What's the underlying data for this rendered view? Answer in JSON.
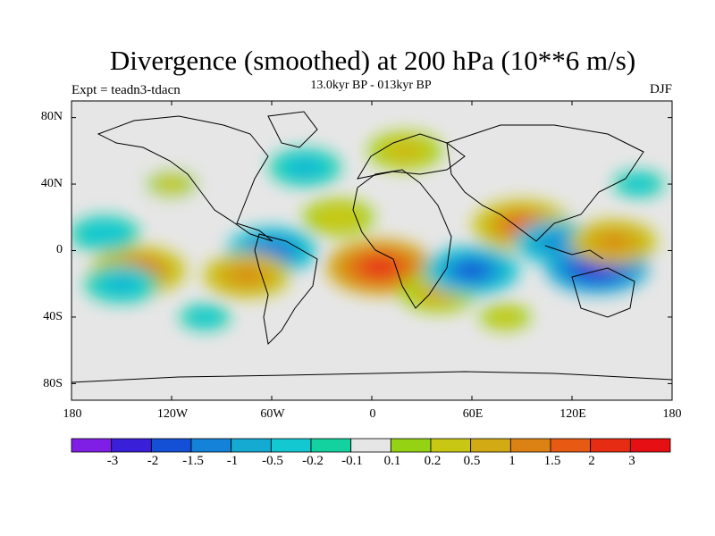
{
  "title": "Divergence (smoothed) at 200 hPa (10**6 m/s)",
  "subtitle": "13.0kyr BP - 013kyr BP",
  "experiment": "Expt = teadn3-tdacn",
  "season": "DJF",
  "map_data": {
    "projection": "cylindrical equidistant",
    "lon_range": [
      -180,
      180
    ],
    "lat_range": [
      -90,
      90
    ],
    "y_tick_labels": [
      "80N",
      "40N",
      "0",
      "40S",
      "80S"
    ],
    "y_tick_values": [
      80,
      40,
      0,
      -40,
      -80
    ],
    "x_tick_labels": [
      "180",
      "120W",
      "60W",
      "0",
      "60E",
      "120E",
      "180"
    ],
    "x_tick_values": [
      -180,
      -120,
      -60,
      0,
      60,
      120,
      180
    ],
    "background_value_color": "#e6e6e6"
  },
  "colorbar": {
    "labels": [
      "-3",
      "-2",
      "-1.5",
      "-1",
      "-0.5",
      "-0.2",
      "-0.1",
      "0.1",
      "0.2",
      "0.5",
      "1",
      "1.5",
      "2",
      "3"
    ],
    "colors": [
      "#7f1fe6",
      "#3a1fd9",
      "#1450d6",
      "#1482d9",
      "#14aad2",
      "#14c8d2",
      "#14d2a0",
      "#e6e6e6",
      "#96d214",
      "#c8c814",
      "#d2aa14",
      "#dc8214",
      "#e65a14",
      "#e62d14",
      "#e60f14"
    ]
  },
  "field_blobs": [
    {
      "lon": -140,
      "lat": -12,
      "value": 1.6
    },
    {
      "lon": -150,
      "lat": -20,
      "value": -0.6
    },
    {
      "lon": -60,
      "lat": 0,
      "value": -1.4
    },
    {
      "lon": -75,
      "lat": -15,
      "value": 1.2
    },
    {
      "lon": 5,
      "lat": -10,
      "value": 2.2
    },
    {
      "lon": 40,
      "lat": -25,
      "value": 0.8
    },
    {
      "lon": 60,
      "lat": -12,
      "value": -1.6
    },
    {
      "lon": 90,
      "lat": 15,
      "value": 1.8
    },
    {
      "lon": 110,
      "lat": 5,
      "value": -1.0
    },
    {
      "lon": 135,
      "lat": -10,
      "value": -2.0
    },
    {
      "lon": 145,
      "lat": 5,
      "value": 1.2
    },
    {
      "lon": -40,
      "lat": 50,
      "value": -0.5
    },
    {
      "lon": 20,
      "lat": 60,
      "value": 0.6
    },
    {
      "lon": -120,
      "lat": 40,
      "value": 0.4
    },
    {
      "lon": -160,
      "lat": 10,
      "value": -0.4
    },
    {
      "lon": 160,
      "lat": 40,
      "value": -0.3
    },
    {
      "lon": -20,
      "lat": 20,
      "value": 0.5
    },
    {
      "lon": 80,
      "lat": -40,
      "value": 0.3
    },
    {
      "lon": -100,
      "lat": -40,
      "value": -0.3
    }
  ]
}
